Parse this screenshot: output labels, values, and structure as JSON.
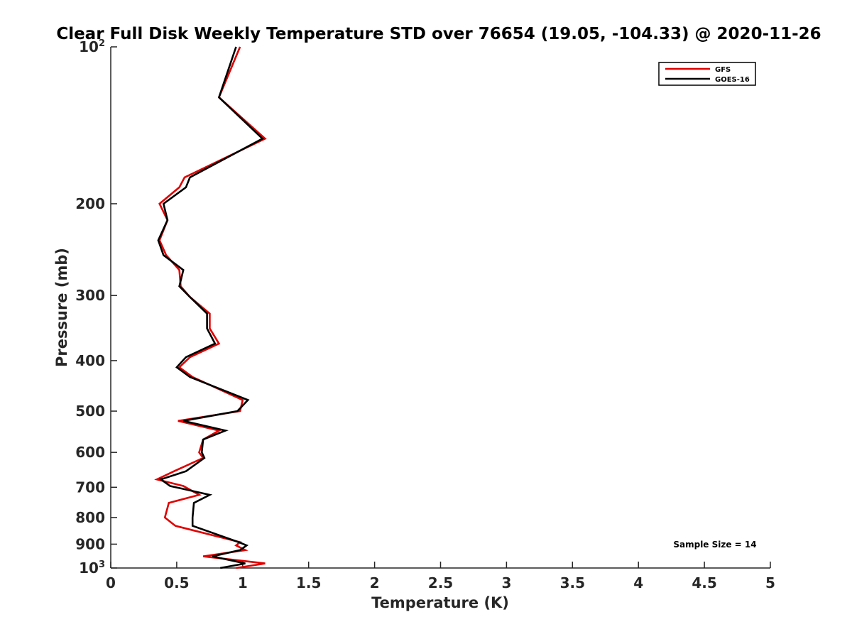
{
  "chart_data": {
    "type": "line",
    "title": "Clear Full Disk Weekly Temperature STD over 76654 (19.05, -104.33) @ 2020-11-26",
    "xlabel": "Temperature (K)",
    "ylabel": "Pressure (mb)",
    "xlim": [
      0,
      5
    ],
    "ylim": [
      100,
      1000
    ],
    "y_scale": "log",
    "y_reversed": true,
    "x_ticks": [
      "0",
      "0.5",
      "1",
      "1.5",
      "2",
      "2.5",
      "3",
      "3.5",
      "4",
      "4.5",
      "5"
    ],
    "y_ticks": [
      {
        "value": 100,
        "base": "10",
        "exp": "2"
      },
      {
        "value": 200,
        "label": "200"
      },
      {
        "value": 300,
        "label": "300"
      },
      {
        "value": 400,
        "label": "400"
      },
      {
        "value": 500,
        "label": "500"
      },
      {
        "value": 600,
        "label": "600"
      },
      {
        "value": 700,
        "label": "700"
      },
      {
        "value": 800,
        "label": "800"
      },
      {
        "value": 900,
        "label": "900"
      },
      {
        "value": 1000,
        "base": "10",
        "exp": "3"
      }
    ],
    "legend_position": "top-right",
    "annotation": "Sample Size = 14",
    "series": [
      {
        "name": "GFS",
        "color": "#e00000",
        "points": [
          [
            0.98,
            100
          ],
          [
            0.82,
            125
          ],
          [
            1.17,
            150
          ],
          [
            0.56,
            178
          ],
          [
            0.52,
            186
          ],
          [
            0.37,
            200
          ],
          [
            0.43,
            215
          ],
          [
            0.37,
            235
          ],
          [
            0.42,
            251
          ],
          [
            0.52,
            268
          ],
          [
            0.53,
            288
          ],
          [
            0.6,
            302
          ],
          [
            0.75,
            325
          ],
          [
            0.75,
            347
          ],
          [
            0.82,
            371
          ],
          [
            0.6,
            394
          ],
          [
            0.52,
            412
          ],
          [
            0.62,
            430
          ],
          [
            1.0,
            476
          ],
          [
            0.98,
            500
          ],
          [
            0.51,
            522
          ],
          [
            0.82,
            545
          ],
          [
            0.7,
            567
          ],
          [
            0.67,
            600
          ],
          [
            0.7,
            615
          ],
          [
            0.48,
            652
          ],
          [
            0.35,
            676
          ],
          [
            0.55,
            696
          ],
          [
            0.67,
            724
          ],
          [
            0.44,
            750
          ],
          [
            0.41,
            800
          ],
          [
            0.49,
            830
          ],
          [
            0.98,
            892
          ],
          [
            0.95,
            905
          ],
          [
            1.02,
            924
          ],
          [
            0.7,
            950
          ],
          [
            1.17,
            980
          ],
          [
            0.95,
            1000
          ]
        ]
      },
      {
        "name": "GOES-16",
        "color": "#000000",
        "points": [
          [
            0.95,
            100
          ],
          [
            0.82,
            125
          ],
          [
            1.15,
            150
          ],
          [
            0.6,
            178
          ],
          [
            0.57,
            186
          ],
          [
            0.4,
            200
          ],
          [
            0.43,
            215
          ],
          [
            0.36,
            235
          ],
          [
            0.4,
            251
          ],
          [
            0.55,
            268
          ],
          [
            0.52,
            288
          ],
          [
            0.6,
            302
          ],
          [
            0.73,
            325
          ],
          [
            0.73,
            347
          ],
          [
            0.79,
            371
          ],
          [
            0.57,
            394
          ],
          [
            0.5,
            412
          ],
          [
            0.6,
            430
          ],
          [
            1.04,
            476
          ],
          [
            0.96,
            500
          ],
          [
            0.55,
            522
          ],
          [
            0.87,
            545
          ],
          [
            0.7,
            567
          ],
          [
            0.69,
            600
          ],
          [
            0.71,
            615
          ],
          [
            0.57,
            652
          ],
          [
            0.38,
            676
          ],
          [
            0.45,
            696
          ],
          [
            0.75,
            724
          ],
          [
            0.63,
            750
          ],
          [
            0.62,
            800
          ],
          [
            0.62,
            830
          ],
          [
            0.97,
            892
          ],
          [
            1.03,
            905
          ],
          [
            0.98,
            924
          ],
          [
            0.77,
            950
          ],
          [
            1.02,
            980
          ],
          [
            0.83,
            1000
          ]
        ]
      }
    ]
  }
}
